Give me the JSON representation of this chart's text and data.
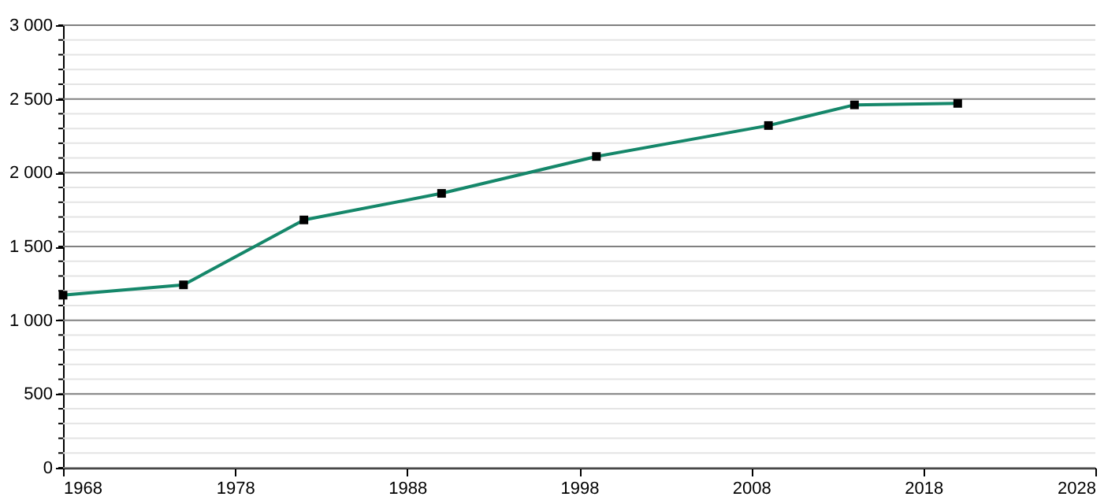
{
  "chart_data": {
    "type": "line",
    "x": [
      1968,
      1975,
      1982,
      1990,
      1999,
      2009,
      2014,
      2020
    ],
    "series": [
      {
        "color": "#15876a",
        "values": [
          1170,
          1240,
          1680,
          1860,
          2110,
          2320,
          2460,
          2470
        ]
      }
    ],
    "xlim": [
      1968,
      2028
    ],
    "xticks": [
      1968,
      1978,
      1988,
      1998,
      2008,
      2018,
      2028
    ],
    "ylim": [
      0,
      3000
    ],
    "yticks": [
      0,
      {
        "value": 100,
        "label": null
      },
      {
        "value": 200,
        "label": null
      },
      {
        "value": 300,
        "label": null
      },
      {
        "value": 400,
        "label": null
      },
      500,
      {
        "value": 600,
        "label": null
      },
      {
        "value": 700,
        "label": null
      },
      {
        "value": 800,
        "label": null
      },
      {
        "value": 900,
        "label": null
      },
      {
        "value": 1000,
        "label": "1 000"
      },
      {
        "value": 1100,
        "label": null
      },
      {
        "value": 1200,
        "label": null
      },
      {
        "value": 1300,
        "label": null
      },
      {
        "value": 1400,
        "label": null
      },
      {
        "value": 1500,
        "label": "1 500"
      },
      {
        "value": 1600,
        "label": null
      },
      {
        "value": 1700,
        "label": null
      },
      {
        "value": 1800,
        "label": null
      },
      {
        "value": 1900,
        "label": null
      },
      {
        "value": 2000,
        "label": "2 000"
      },
      {
        "value": 2100,
        "label": null
      },
      {
        "value": 2200,
        "label": null
      },
      {
        "value": 2300,
        "label": null
      },
      {
        "value": 2400,
        "label": null
      },
      {
        "value": 2500,
        "label": "2 500"
      },
      {
        "value": 2600,
        "label": null
      },
      {
        "value": 2700,
        "label": null
      },
      {
        "value": 2800,
        "label": null
      },
      {
        "value": 2900,
        "label": null
      },
      {
        "value": 3000,
        "label": "3 000"
      }
    ],
    "grid": "y",
    "marker": "square",
    "line_style": "solid"
  }
}
